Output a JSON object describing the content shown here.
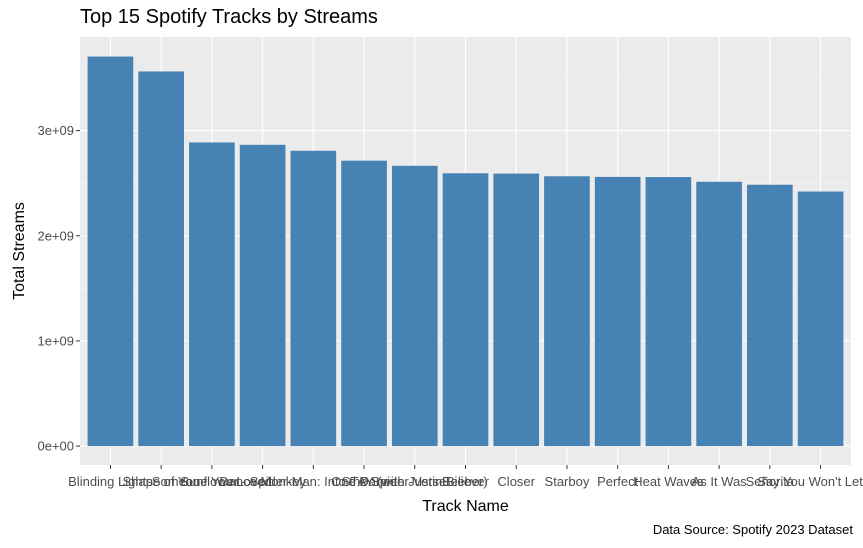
{
  "chart_data": {
    "type": "bar",
    "title": "Top 15 Spotify Tracks by Streams",
    "xlabel": "Track Name",
    "ylabel": "Total Streams",
    "caption": "Data Source: Spotify 2023 Dataset",
    "categories": [
      "Blinding Lights",
      "Shape of You",
      "Someone You Loved",
      "Dance Monkey",
      "Sunflower - Spider-Man: Into the Spider-Verse",
      "One Dance",
      "STAY (with Justin Bieber)",
      "Believer",
      "Closer",
      "Starboy",
      "Perfect",
      "Heat Waves",
      "As It Was",
      "Señorita",
      "Say You Won't Let Go"
    ],
    "values": [
      3703895074,
      3562543890,
      2887241814,
      2864791672,
      2808096550,
      2713922350,
      2665343922,
      2594040133,
      2591224264,
      2565529693,
      2559529074,
      2557975762,
      2513188493,
      2484812918,
      2420461338
    ],
    "ylim": [
      -180000000,
      3890000000
    ],
    "yticks": [
      0,
      1000000000,
      2000000000,
      3000000000
    ],
    "ytick_labels": [
      "0e+00",
      "1e+09",
      "2e+09",
      "3e+09"
    ],
    "grid": true,
    "legend": "none",
    "colors": {
      "bar": "#4682B4",
      "panel": "#EBEBEB",
      "grid_major": "#FFFFFF",
      "grid_minor": "#F5F5F5",
      "tick_text": "#4D4D4D",
      "tick_mark": "#333333"
    }
  }
}
